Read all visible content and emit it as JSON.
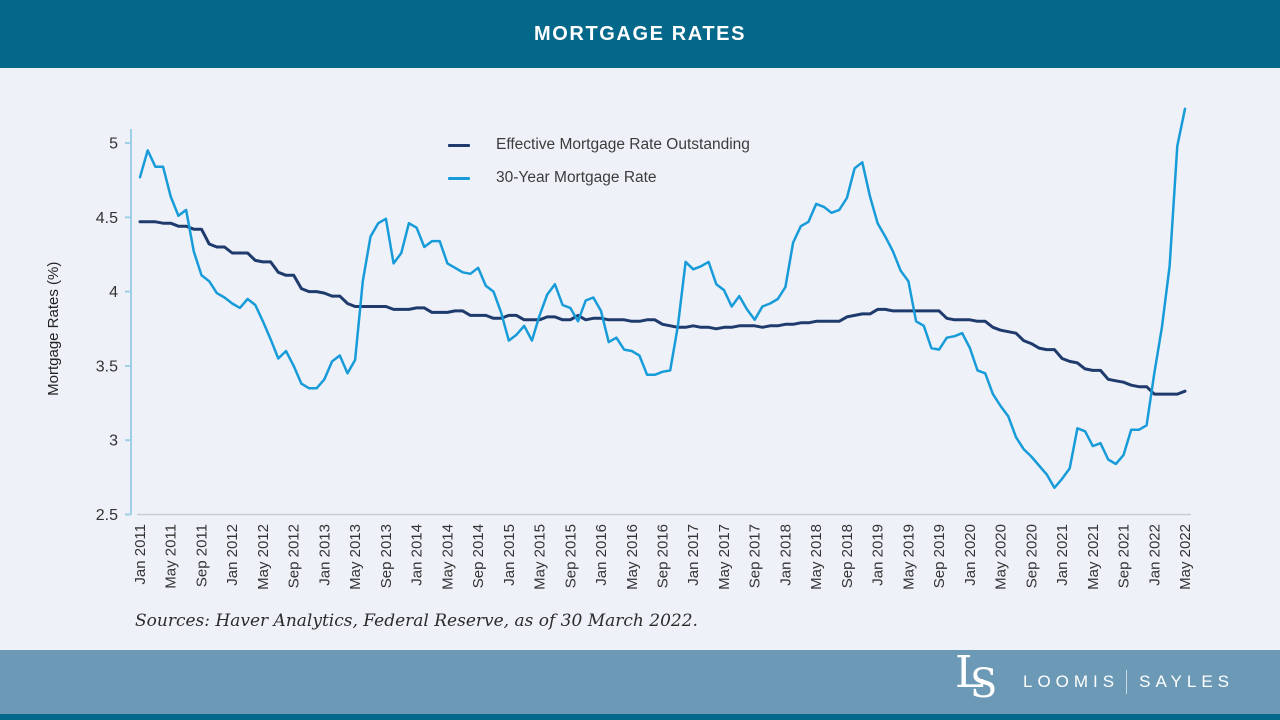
{
  "header": {
    "title": "MORTGAGE RATES"
  },
  "chart_data": {
    "type": "line",
    "title": "MORTGAGE RATES",
    "ylabel": "Mortgage Rates (%)",
    "xlabel": "",
    "ylim": [
      2.5,
      5.25
    ],
    "grid": false,
    "legend_position": "top-center-inside",
    "y_ticks": [
      {
        "value": 5,
        "label": "5"
      },
      {
        "value": 4.5,
        "label": "4.5"
      },
      {
        "value": 4,
        "label": "4"
      },
      {
        "value": 3.5,
        "label": "3.5"
      },
      {
        "value": 3,
        "label": "3"
      },
      {
        "value": 2.5,
        "label": "2.5"
      }
    ],
    "x_tick_labels": [
      "Jan 2011",
      "May 2011",
      "Sep 2011",
      "Jan 2012",
      "May 2012",
      "Sep 2012",
      "Jan 2013",
      "May 2013",
      "Sep 2013",
      "Jan 2014",
      "May 2014",
      "Sep 2014",
      "Jan 2015",
      "May 2015",
      "Sep 2015",
      "Jan 2016",
      "May 2016",
      "Sep 2016",
      "Jan 2017",
      "May 2017",
      "Sep 2017",
      "Jan 2018",
      "May 2018",
      "Sep 2018",
      "Jan 2019",
      "May 2019",
      "Sep 2019",
      "Jan 2020",
      "May 2020",
      "Sep 2020",
      "Jan 2021",
      "May 2021",
      "Sep 2021",
      "Jan 2022",
      "May 2022"
    ],
    "x_tick_month_step": 4,
    "x_months_span": "Jan 2011 to May 2022, monthly",
    "series": [
      {
        "name": "Effective Mortgage Rate Outstanding",
        "color": "#1f3b6d",
        "width": 3,
        "values": [
          4.47,
          4.47,
          4.47,
          4.46,
          4.46,
          4.44,
          4.44,
          4.42,
          4.42,
          4.32,
          4.3,
          4.3,
          4.26,
          4.26,
          4.26,
          4.21,
          4.2,
          4.2,
          4.13,
          4.11,
          4.11,
          4.02,
          4.0,
          4.0,
          3.99,
          3.97,
          3.97,
          3.92,
          3.9,
          3.9,
          3.9,
          3.9,
          3.9,
          3.88,
          3.88,
          3.88,
          3.89,
          3.89,
          3.86,
          3.86,
          3.86,
          3.87,
          3.87,
          3.84,
          3.84,
          3.84,
          3.82,
          3.82,
          3.84,
          3.84,
          3.81,
          3.81,
          3.81,
          3.83,
          3.83,
          3.81,
          3.81,
          3.84,
          3.81,
          3.82,
          3.82,
          3.81,
          3.81,
          3.81,
          3.8,
          3.8,
          3.81,
          3.81,
          3.78,
          3.77,
          3.76,
          3.76,
          3.77,
          3.76,
          3.76,
          3.75,
          3.76,
          3.76,
          3.77,
          3.77,
          3.77,
          3.76,
          3.77,
          3.77,
          3.78,
          3.78,
          3.79,
          3.79,
          3.8,
          3.8,
          3.8,
          3.8,
          3.83,
          3.84,
          3.85,
          3.85,
          3.88,
          3.88,
          3.87,
          3.87,
          3.87,
          3.87,
          3.87,
          3.87,
          3.87,
          3.82,
          3.81,
          3.81,
          3.81,
          3.8,
          3.8,
          3.76,
          3.74,
          3.73,
          3.72,
          3.67,
          3.65,
          3.62,
          3.61,
          3.61,
          3.55,
          3.53,
          3.52,
          3.48,
          3.47,
          3.47,
          3.41,
          3.4,
          3.39,
          3.37,
          3.36,
          3.36,
          3.31,
          3.31,
          3.31,
          3.31,
          3.33
        ]
      },
      {
        "name": "30-Year Mortgage Rate",
        "color": "#189bd9",
        "width": 2.5,
        "values": [
          4.77,
          4.95,
          4.84,
          4.84,
          4.64,
          4.51,
          4.55,
          4.27,
          4.11,
          4.07,
          3.99,
          3.96,
          3.92,
          3.89,
          3.95,
          3.91,
          3.8,
          3.68,
          3.55,
          3.6,
          3.5,
          3.38,
          3.35,
          3.35,
          3.41,
          3.53,
          3.57,
          3.45,
          3.54,
          4.07,
          4.37,
          4.46,
          4.49,
          4.19,
          4.26,
          4.46,
          4.43,
          4.3,
          4.34,
          4.34,
          4.19,
          4.16,
          4.13,
          4.12,
          4.16,
          4.04,
          4.0,
          3.86,
          3.67,
          3.71,
          3.77,
          3.67,
          3.84,
          3.98,
          4.05,
          3.91,
          3.89,
          3.8,
          3.94,
          3.96,
          3.87,
          3.66,
          3.69,
          3.61,
          3.6,
          3.57,
          3.44,
          3.44,
          3.46,
          3.47,
          3.77,
          4.2,
          4.15,
          4.17,
          4.2,
          4.05,
          4.01,
          3.9,
          3.97,
          3.88,
          3.81,
          3.9,
          3.92,
          3.95,
          4.03,
          4.33,
          4.44,
          4.47,
          4.59,
          4.57,
          4.53,
          4.55,
          4.63,
          4.83,
          4.87,
          4.64,
          4.46,
          4.37,
          4.27,
          4.14,
          4.07,
          3.8,
          3.77,
          3.62,
          3.61,
          3.69,
          3.7,
          3.72,
          3.62,
          3.47,
          3.45,
          3.31,
          3.23,
          3.16,
          3.02,
          2.94,
          2.89,
          2.83,
          2.77,
          2.68,
          2.74,
          2.81,
          3.08,
          3.06,
          2.96,
          2.98,
          2.87,
          2.84,
          2.9,
          3.07,
          3.07,
          3.1,
          3.45,
          3.76,
          4.17,
          4.98,
          5.23
        ]
      }
    ]
  },
  "sources": {
    "text": "Sources: Haver Analytics, Federal Reserve, as of 30 March 2022."
  },
  "footer": {
    "monogram_l": "L",
    "monogram_s": "S",
    "brand_left": "LOOMIS",
    "brand_right": "SAYLES"
  },
  "colors": {
    "header_bg": "#04688a",
    "footer_bg": "#6c9ab6",
    "footer_strip": "#04688a",
    "page_bg": "#eef2f8",
    "y_axis_line": "#9fcfe8",
    "x_base_line": "#c9ccd3",
    "tick_text": "#333333",
    "navy_series": "#1f3b6d",
    "blue_series": "#189bd9"
  }
}
